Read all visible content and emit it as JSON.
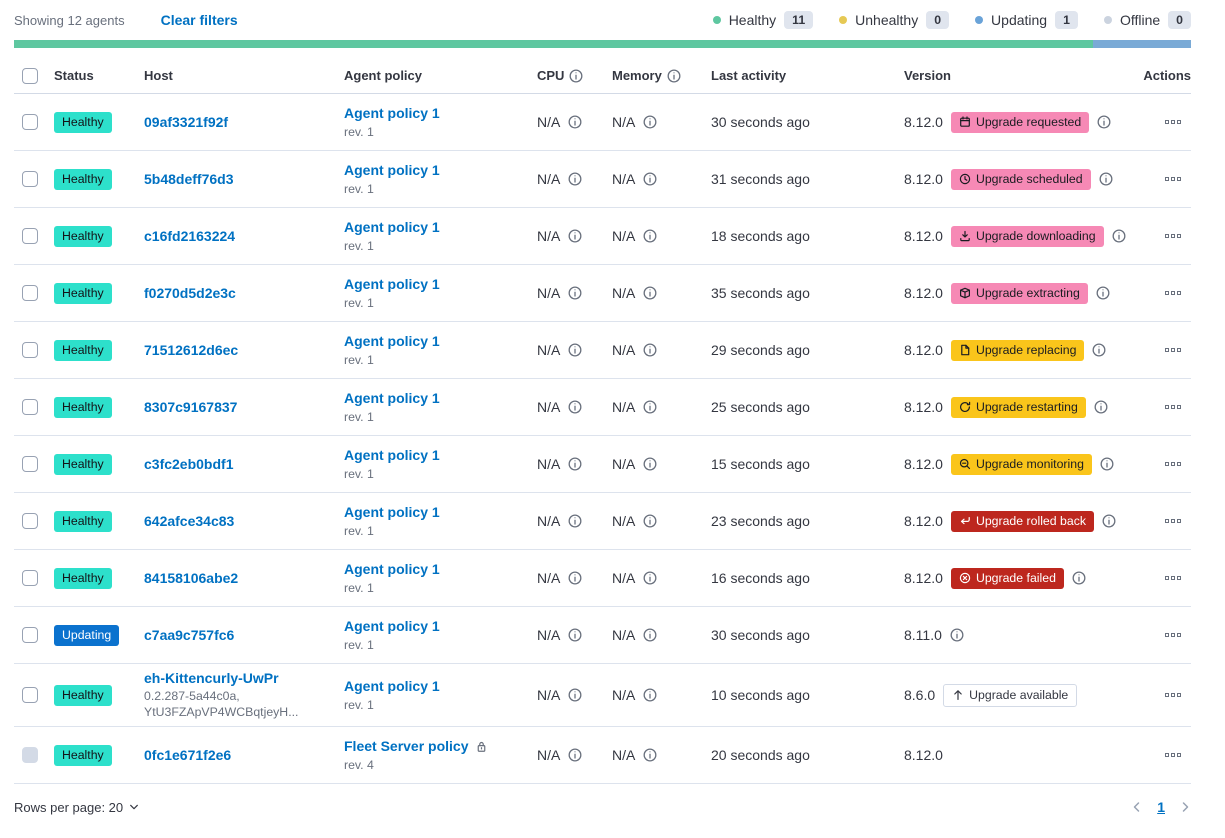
{
  "header_bar": {
    "showing_text": "Showing 12 agents",
    "clear_filters_label": "Clear filters",
    "legend": [
      {
        "label": "Healthy",
        "count": "11",
        "color": "#5EC7A0",
        "icon": "healthy-dot-icon"
      },
      {
        "label": "Unhealthy",
        "count": "0",
        "color": "#E6C954",
        "icon": "unhealthy-dot-icon"
      },
      {
        "label": "Updating",
        "count": "1",
        "color": "#6AA3D8",
        "icon": "updating-dot-icon"
      },
      {
        "label": "Offline",
        "count": "0",
        "color": "#CBD3DF",
        "icon": "offline-dot-icon"
      }
    ]
  },
  "progress_bar": {
    "segments": [
      {
        "name": "healthy",
        "color": "#5EC7A0",
        "fraction": 0.917
      },
      {
        "name": "updating",
        "color": "#7AAAD6",
        "fraction": 0.083
      }
    ]
  },
  "table": {
    "columns": [
      "Status",
      "Host",
      "Agent policy",
      "CPU",
      "Memory",
      "Last activity",
      "Version",
      "Actions"
    ],
    "na_label": "N/A",
    "rows": [
      {
        "status": "Healthy",
        "status_style": "healthy",
        "host": "09af3321f92f",
        "policy": "Agent policy 1",
        "policy_rev": "rev. 1",
        "policy_locked": false,
        "cpu": "N/A",
        "memory": "N/A",
        "last_activity": "30 seconds ago",
        "version": "8.12.0",
        "upgrade": {
          "label": "Upgrade requested",
          "style": "accent",
          "icon": "calendar-icon"
        },
        "version_info": true,
        "checkbox_disabled": false
      },
      {
        "status": "Healthy",
        "status_style": "healthy",
        "host": "5b48deff76d3",
        "policy": "Agent policy 1",
        "policy_rev": "rev. 1",
        "policy_locked": false,
        "cpu": "N/A",
        "memory": "N/A",
        "last_activity": "31 seconds ago",
        "version": "8.12.0",
        "upgrade": {
          "label": "Upgrade scheduled",
          "style": "accent",
          "icon": "clock-icon"
        },
        "version_info": true,
        "checkbox_disabled": false
      },
      {
        "status": "Healthy",
        "status_style": "healthy",
        "host": "c16fd2163224",
        "policy": "Agent policy 1",
        "policy_rev": "rev. 1",
        "policy_locked": false,
        "cpu": "N/A",
        "memory": "N/A",
        "last_activity": "18 seconds ago",
        "version": "8.12.0",
        "upgrade": {
          "label": "Upgrade downloading",
          "style": "accent",
          "icon": "download-icon"
        },
        "version_info": true,
        "checkbox_disabled": false
      },
      {
        "status": "Healthy",
        "status_style": "healthy",
        "host": "f0270d5d2e3c",
        "policy": "Agent policy 1",
        "policy_rev": "rev. 1",
        "policy_locked": false,
        "cpu": "N/A",
        "memory": "N/A",
        "last_activity": "35 seconds ago",
        "version": "8.12.0",
        "upgrade": {
          "label": "Upgrade extracting",
          "style": "accent",
          "icon": "package-icon"
        },
        "version_info": true,
        "checkbox_disabled": false
      },
      {
        "status": "Healthy",
        "status_style": "healthy",
        "host": "71512612d6ec",
        "policy": "Agent policy 1",
        "policy_rev": "rev. 1",
        "policy_locked": false,
        "cpu": "N/A",
        "memory": "N/A",
        "last_activity": "29 seconds ago",
        "version": "8.12.0",
        "upgrade": {
          "label": "Upgrade replacing",
          "style": "warning",
          "icon": "document-icon"
        },
        "version_info": true,
        "checkbox_disabled": false
      },
      {
        "status": "Healthy",
        "status_style": "healthy",
        "host": "8307c9167837",
        "policy": "Agent policy 1",
        "policy_rev": "rev. 1",
        "policy_locked": false,
        "cpu": "N/A",
        "memory": "N/A",
        "last_activity": "25 seconds ago",
        "version": "8.12.0",
        "upgrade": {
          "label": "Upgrade restarting",
          "style": "warning",
          "icon": "refresh-icon"
        },
        "version_info": true,
        "checkbox_disabled": false
      },
      {
        "status": "Healthy",
        "status_style": "healthy",
        "host": "c3fc2eb0bdf1",
        "policy": "Agent policy 1",
        "policy_rev": "rev. 1",
        "policy_locked": false,
        "cpu": "N/A",
        "memory": "N/A",
        "last_activity": "15 seconds ago",
        "version": "8.12.0",
        "upgrade": {
          "label": "Upgrade monitoring",
          "style": "warning",
          "icon": "inspect-icon"
        },
        "version_info": true,
        "checkbox_disabled": false
      },
      {
        "status": "Healthy",
        "status_style": "healthy",
        "host": "642afce34c83",
        "policy": "Agent policy 1",
        "policy_rev": "rev. 1",
        "policy_locked": false,
        "cpu": "N/A",
        "memory": "N/A",
        "last_activity": "23 seconds ago",
        "version": "8.12.0",
        "upgrade": {
          "label": "Upgrade rolled back",
          "style": "danger",
          "icon": "return-icon"
        },
        "version_info": true,
        "checkbox_disabled": false
      },
      {
        "status": "Healthy",
        "status_style": "healthy",
        "host": "84158106abe2",
        "policy": "Agent policy 1",
        "policy_rev": "rev. 1",
        "policy_locked": false,
        "cpu": "N/A",
        "memory": "N/A",
        "last_activity": "16 seconds ago",
        "version": "8.12.0",
        "upgrade": {
          "label": "Upgrade failed",
          "style": "danger",
          "icon": "error-icon"
        },
        "version_info": true,
        "checkbox_disabled": false
      },
      {
        "status": "Updating",
        "status_style": "updating",
        "host": "c7aa9c757fc6",
        "policy": "Agent policy 1",
        "policy_rev": "rev. 1",
        "policy_locked": false,
        "cpu": "N/A",
        "memory": "N/A",
        "last_activity": "30 seconds ago",
        "version": "8.11.0",
        "upgrade": null,
        "version_info": true,
        "checkbox_disabled": false
      },
      {
        "status": "Healthy",
        "status_style": "healthy",
        "host": "eh-Kittencurly-UwPr",
        "host_sub": [
          "0.2.287-5a44c0a,",
          "YtU3FZApVP4WCBqtjeyH..."
        ],
        "policy": "Agent policy 1",
        "policy_rev": "rev. 1",
        "policy_locked": false,
        "cpu": "N/A",
        "memory": "N/A",
        "last_activity": "10 seconds ago",
        "version": "8.6.0",
        "upgrade": {
          "label": "Upgrade available",
          "style": "hollow",
          "icon": "arrow-up-icon"
        },
        "version_info": false,
        "checkbox_disabled": false
      },
      {
        "status": "Healthy",
        "status_style": "healthy",
        "host": "0fc1e671f2e6",
        "policy": "Fleet Server policy",
        "policy_rev": "rev. 4",
        "policy_locked": true,
        "cpu": "N/A",
        "memory": "N/A",
        "last_activity": "20 seconds ago",
        "version": "8.12.0",
        "upgrade": null,
        "version_info": false,
        "checkbox_disabled": true
      }
    ]
  },
  "footer": {
    "rows_per_page_label": "Rows per page: 20",
    "page": "1"
  },
  "colors": {
    "link": "#0071C2",
    "healthy_badge": "#2DE0CB",
    "updating_badge": "#0B72CE",
    "accent_badge": "#F689B5",
    "warning_badge": "#FAC51B",
    "danger_badge": "#BD271E"
  }
}
